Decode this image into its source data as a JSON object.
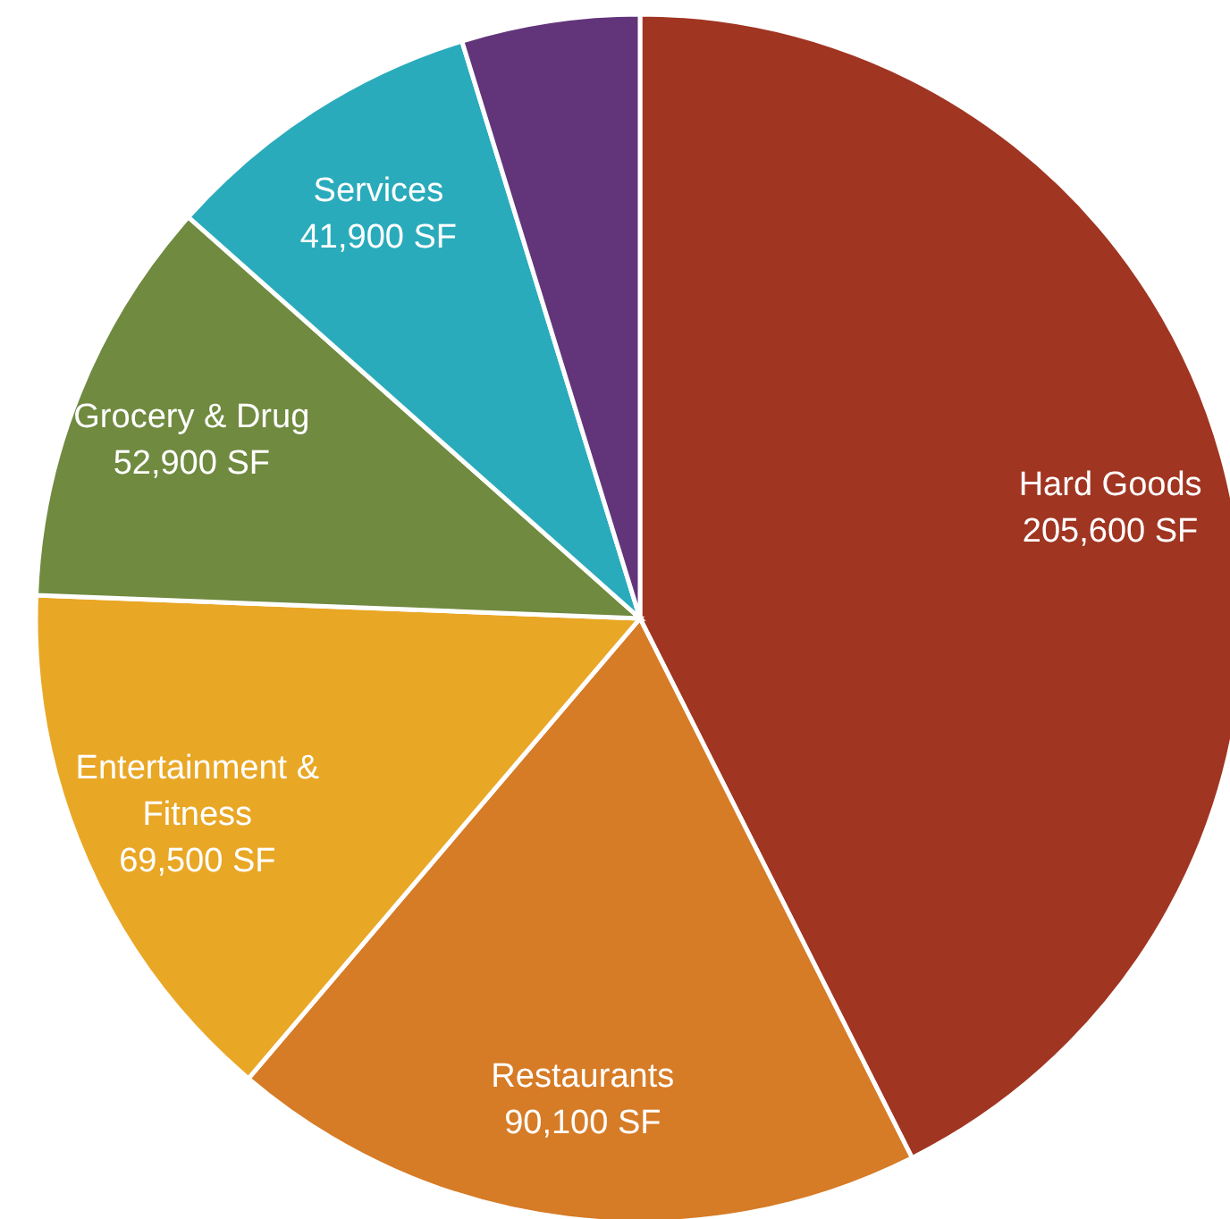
{
  "chart_data": {
    "type": "pie",
    "categories": [
      "Hard Goods",
      "Restaurants",
      "Entertainment & Fitness",
      "Grocery & Drug",
      "Services",
      null
    ],
    "values": [
      205600,
      90100,
      69500,
      52900,
      41900,
      23000
    ],
    "value_labels": [
      "205,600 SF",
      "90,100 SF",
      "69,500 SF",
      "52,900 SF",
      "41,900 SF",
      null
    ],
    "colors": [
      "#a03522",
      "#d67b26",
      "#e9a726",
      "#708a40",
      "#2aabbb",
      "#62357a"
    ]
  }
}
